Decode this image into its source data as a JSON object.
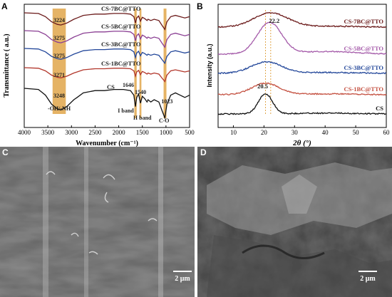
{
  "chart_data": [
    {
      "panel": "A",
      "type": "line",
      "xlabel": "Wavenumber (cm⁻¹)",
      "ylabel": "Transmittance ( a.u.)",
      "xlim": [
        4000,
        500
      ],
      "x_reversed": true,
      "xticks": [
        4000,
        3500,
        3000,
        2500,
        2000,
        1500,
        1000,
        500
      ],
      "series": [
        {
          "name": "CS-7BC@TTO",
          "color": "#6b1a1a"
        },
        {
          "name": "CS-5BC@TTO",
          "color": "#8a3e93"
        },
        {
          "name": "CS-3BC@TTO",
          "color": "#23479a"
        },
        {
          "name": "CS-1BC@TTO",
          "color": "#b2362b"
        },
        {
          "name": "CS",
          "color": "#111111"
        }
      ],
      "peak_labels": [
        "3224",
        "3275",
        "3275",
        "3271",
        "3248"
      ],
      "peaks": [
        {
          "x": 1646,
          "label": "1646"
        },
        {
          "x": 1540,
          "label": "1540"
        },
        {
          "x": 1023,
          "label": "1023"
        }
      ],
      "highlight_bands": [
        {
          "from": 3400,
          "to": 3120,
          "label": "-OH/-NH"
        },
        {
          "from": 1670,
          "to": 1620,
          "label": "I band"
        },
        {
          "from": 1560,
          "to": 1520,
          "label": "II band"
        },
        {
          "from": 1050,
          "to": 990,
          "label": "C-O"
        }
      ],
      "band_color": "#e0a64a"
    },
    {
      "panel": "B",
      "type": "line",
      "xlabel": "2θ (°)",
      "ylabel": "Intensity (a.u.)",
      "xlim": [
        5,
        60
      ],
      "xticks": [
        10,
        20,
        30,
        40,
        50,
        60
      ],
      "series": [
        {
          "name": "CS-7BC@TTO",
          "color": "#6b1a1a"
        },
        {
          "name": "CS-5BC@TTO",
          "color": "#a45aa9"
        },
        {
          "name": "CS-3BC@TTO",
          "color": "#23479a"
        },
        {
          "name": "CS-1BC@TTO",
          "color": "#c45040"
        },
        {
          "name": "CS",
          "color": "#111111"
        }
      ],
      "peaks": [
        {
          "x": 22.2,
          "label": "22.2"
        },
        {
          "x": 20.5,
          "label": "20.5"
        }
      ],
      "guide_color": "#e0a64a"
    }
  ],
  "panels": {
    "a": "A",
    "b": "B",
    "c": "C",
    "d": "D"
  },
  "images": {
    "c_scale": "2 μm",
    "d_scale": "2 μm"
  }
}
